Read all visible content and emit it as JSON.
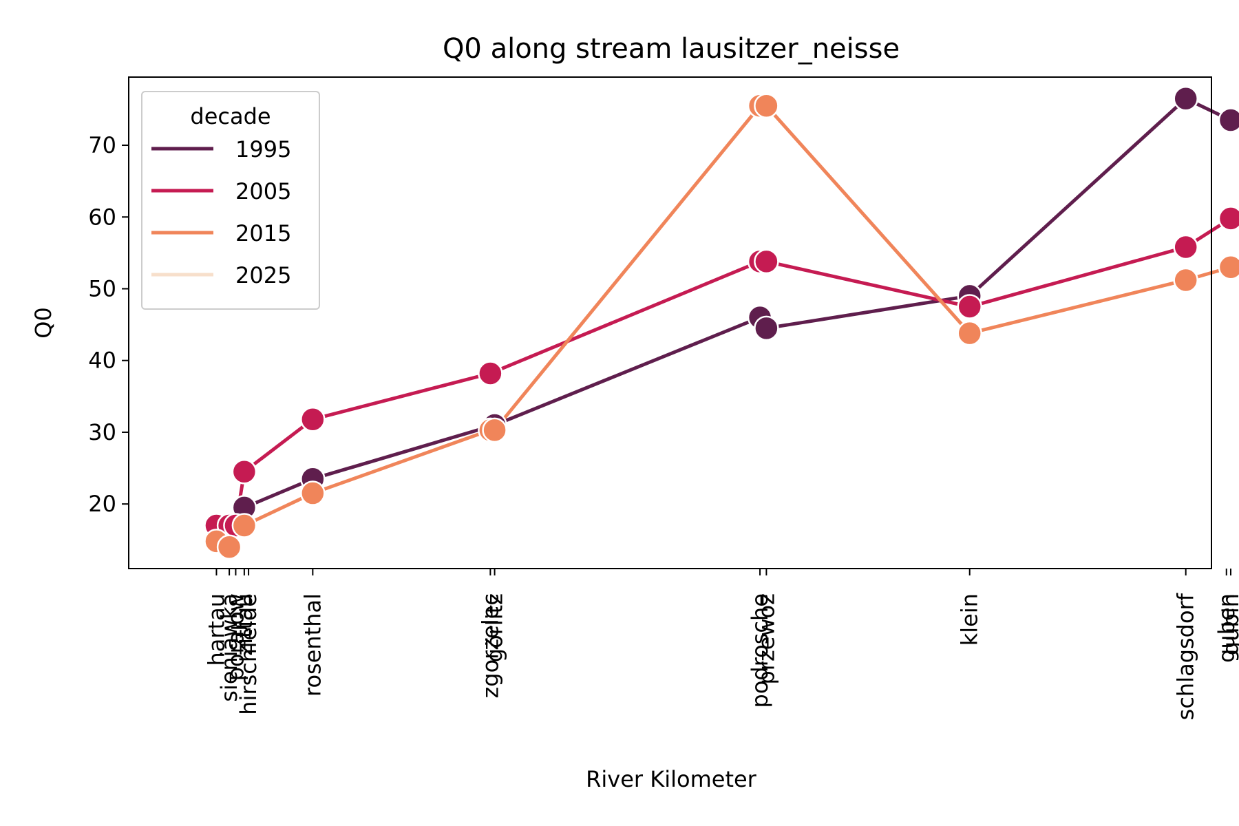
{
  "chart_data": {
    "type": "line",
    "title": "Q0 along stream lausitzer_neisse",
    "xlabel": "River Kilometer",
    "ylabel": "Q0",
    "ylim": [
      11,
      79.5
    ],
    "yticks": [
      20,
      30,
      40,
      50,
      60,
      70
    ],
    "xlim": [
      -3.1,
      47.5
    ],
    "grid": false,
    "legend": {
      "title": "decade",
      "position": "top-left"
    },
    "stations": [
      {
        "name": "hartau",
        "x": 1.0
      },
      {
        "name": "sieniawka",
        "x": 1.6
      },
      {
        "name": "porajow",
        "x": 1.9
      },
      {
        "name": "zittau",
        "x": 2.3
      },
      {
        "name": "hirschfelde",
        "x": 2.5
      },
      {
        "name": "rosenthal",
        "x": 5.5
      },
      {
        "name": "zgorzelec",
        "x": 13.8
      },
      {
        "name": "görlitz",
        "x": 14.0
      },
      {
        "name": "podrosche",
        "x": 26.4
      },
      {
        "name": "przewoz",
        "x": 26.7
      },
      {
        "name": "klein",
        "x": 36.2
      },
      {
        "name": "schlagsdorf",
        "x": 46.3
      },
      {
        "name": "guben",
        "x": 48.2
      },
      {
        "name": "gubin",
        "x": 48.4
      }
    ],
    "series": [
      {
        "name": "1995",
        "color": "#5f1e4d",
        "points": [
          [
            2.3,
            19.5
          ],
          [
            5.5,
            23.5
          ],
          [
            14.0,
            31.0
          ],
          [
            26.4,
            46.0
          ],
          [
            26.7,
            44.5
          ],
          [
            36.2,
            49.0
          ],
          [
            46.3,
            76.5
          ],
          [
            48.4,
            73.5
          ]
        ]
      },
      {
        "name": "2005",
        "color": "#c51b52",
        "points": [
          [
            1.0,
            17.0
          ],
          [
            1.6,
            17.0
          ],
          [
            1.9,
            17.0
          ],
          [
            2.3,
            24.5
          ],
          [
            5.5,
            31.8
          ],
          [
            13.8,
            38.2
          ],
          [
            26.4,
            53.8
          ],
          [
            26.7,
            53.8
          ],
          [
            36.2,
            47.5
          ],
          [
            46.3,
            55.8
          ],
          [
            48.4,
            59.8
          ]
        ]
      },
      {
        "name": "2015",
        "color": "#f0855a",
        "points": [
          [
            1.0,
            14.8
          ],
          [
            1.6,
            14.0
          ],
          [
            2.3,
            17.0
          ],
          [
            5.5,
            21.5
          ],
          [
            13.8,
            30.3
          ],
          [
            14.0,
            30.3
          ],
          [
            26.4,
            75.5
          ],
          [
            26.7,
            75.5
          ],
          [
            36.2,
            43.8
          ],
          [
            46.3,
            51.2
          ],
          [
            48.4,
            53.0
          ]
        ]
      },
      {
        "name": "2025",
        "color": "#f7dfcb",
        "points": []
      }
    ]
  }
}
